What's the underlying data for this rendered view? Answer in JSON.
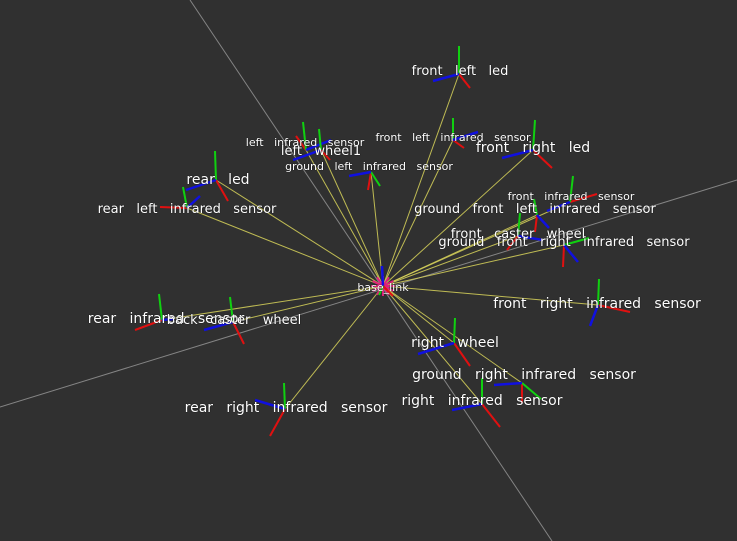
{
  "viewport": {
    "background": "#303030",
    "grid_color": "#9a9a9a",
    "link_color": "#d8d35a",
    "axis_colors": {
      "x": "#e01010",
      "y": "#10d010",
      "z": "#1010e0"
    },
    "root_marker_color": "#e0207a"
  },
  "frames": [
    {
      "id": "base_link",
      "label": "base_link"
    },
    {
      "id": "front_left_led",
      "label": "front   left   led"
    },
    {
      "id": "left_infrared_sensor",
      "label": "left   infrared   sensor"
    },
    {
      "id": "left_wheel",
      "label": "left   wheel1"
    },
    {
      "id": "front_left_infrared_sensor",
      "label": "front   left   infrared   sensor"
    },
    {
      "id": "front_right_led",
      "label": "front   right   led"
    },
    {
      "id": "ground_left_infrared_sensor",
      "label": "ground   left   infrared   sensor"
    },
    {
      "id": "rear_led",
      "label": "rear   led"
    },
    {
      "id": "rear_left_infrared_sensor",
      "label": "rear   left   infrared   sensor"
    },
    {
      "id": "front_infrared_sensor",
      "label": "front   infrared   sensor"
    },
    {
      "id": "ground_front_left_infrared_sensor",
      "label": "ground   front   left   infrared   sensor"
    },
    {
      "id": "front_caster_wheel",
      "label": "front   caster   wheel"
    },
    {
      "id": "ground_front_right_infrared_sensor",
      "label": "ground   front   right   infrared   sensor"
    },
    {
      "id": "front_right_infrared_sensor",
      "label": "front   right   infrared   sensor"
    },
    {
      "id": "rear_infrared_sensor",
      "label": "rear   infrared   sensor"
    },
    {
      "id": "back_caster_wheel",
      "label": "back   caster   wheel"
    },
    {
      "id": "right_wheel",
      "label": "right   wheel"
    },
    {
      "id": "ground_right_infrared_sensor",
      "label": "ground   right   infrared   sensor"
    },
    {
      "id": "rear_right_infrared_sensor",
      "label": "rear   right   infrared   sensor"
    },
    {
      "id": "right_infrared_sensor",
      "label": "right   infrared   sensor"
    }
  ]
}
